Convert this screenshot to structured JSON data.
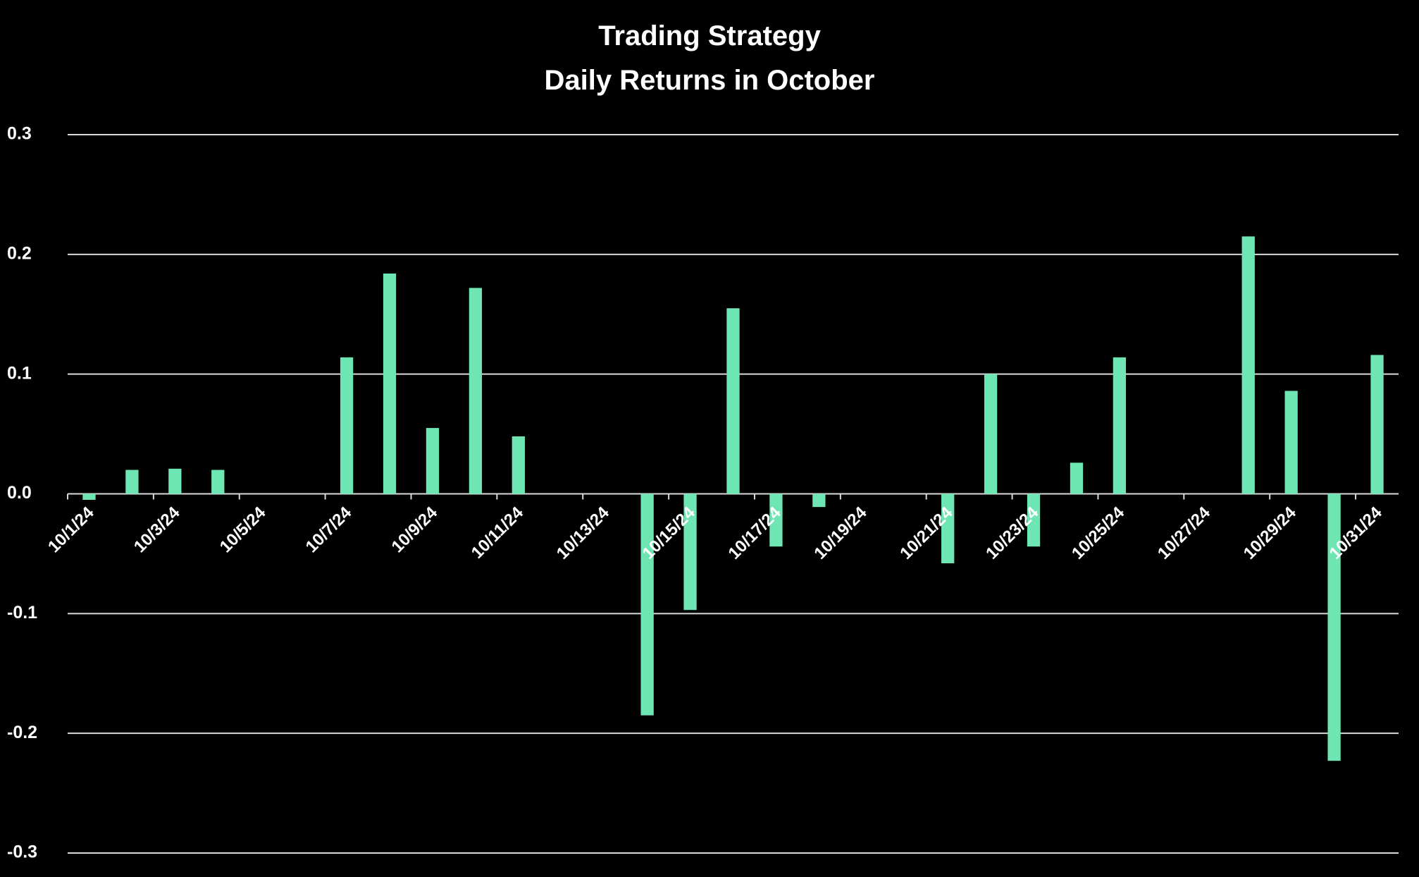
{
  "chart_data": {
    "type": "bar",
    "title": "Trading Strategy",
    "subtitle": "Daily Returns in October",
    "categories": [
      "10/1/24",
      null,
      "10/3/24",
      null,
      "10/5/24",
      null,
      "10/7/24",
      null,
      "10/9/24",
      null,
      "10/11/24",
      null,
      "10/13/24",
      null,
      "10/15/24",
      null,
      "10/17/24",
      null,
      "10/19/24",
      null,
      "10/21/24",
      null,
      "10/23/24",
      null,
      "10/25/24",
      null,
      "10/27/24",
      null,
      "10/29/24",
      null,
      "10/31/24"
    ],
    "values": [
      -0.005,
      0.02,
      0.021,
      0.02,
      0,
      0,
      0.114,
      0.184,
      0.055,
      0.172,
      0.048,
      0,
      0,
      -0.185,
      -0.097,
      0.155,
      -0.044,
      -0.011,
      0,
      0,
      -0.058,
      0.1,
      -0.044,
      0.026,
      0.114,
      0,
      0,
      0.215,
      0.086,
      -0.223,
      0.116
    ],
    "color": "#6ee6b4",
    "ylim": [
      -0.3,
      0.3
    ],
    "yticks": [
      -0.3,
      -0.2,
      -0.1,
      {
        "value": 0,
        "label": "0.0"
      },
      0.1,
      0.2,
      0.3
    ],
    "grid": true
  }
}
